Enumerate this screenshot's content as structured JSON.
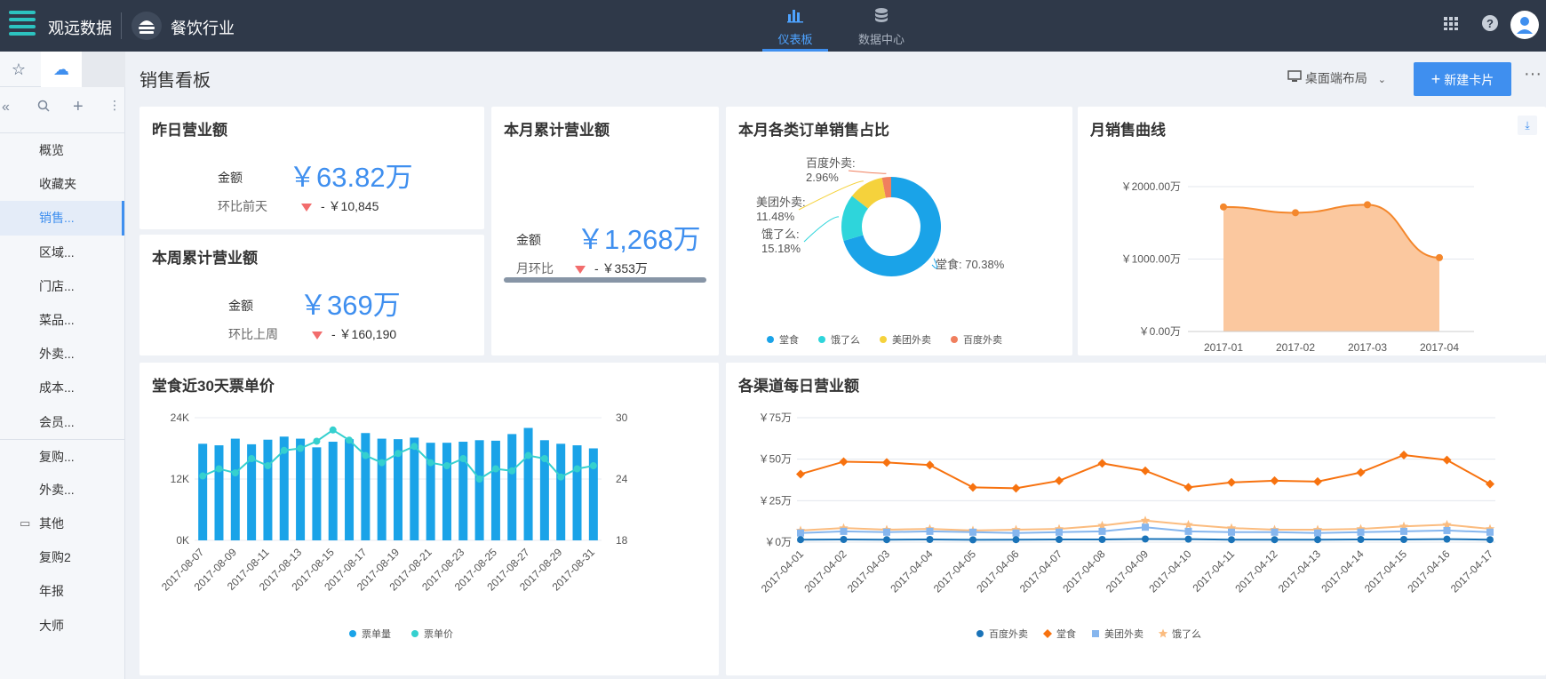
{
  "topbar": {
    "brand": "观远数据",
    "project": "餐饮行业",
    "nav": [
      {
        "label": "仪表板",
        "icon": "bar-chart-icon",
        "active": true
      },
      {
        "label": "数据中心",
        "icon": "database-icon",
        "active": false
      }
    ],
    "right_icons": [
      "apps-grid-icon",
      "help-icon",
      "user-avatar-icon"
    ]
  },
  "sidebar": {
    "tabs": [
      "star-icon",
      "cloud-icon"
    ],
    "tools": [
      "collapse-icon",
      "search-icon",
      "add-icon",
      "more-vertical-icon"
    ],
    "items": [
      {
        "label": "概览"
      },
      {
        "label": "收藏夹"
      },
      {
        "label": "销售..."
      },
      {
        "label": "区域..."
      },
      {
        "label": "门店..."
      },
      {
        "label": "菜品..."
      },
      {
        "label": "外卖..."
      },
      {
        "label": "成本..."
      },
      {
        "label": "会员..."
      },
      {
        "label": "复购..."
      },
      {
        "label": "外卖..."
      },
      {
        "label": "其他"
      },
      {
        "label": "复购2"
      },
      {
        "label": "年报"
      },
      {
        "label": "大师"
      }
    ]
  },
  "page": {
    "title": "销售看板",
    "layout_label": "桌面端布局",
    "new_card_label": "新建卡片",
    "more": "···"
  },
  "cards": {
    "yesterday": {
      "title": "昨日营业额",
      "amount_label": "金额",
      "amount": "￥63.82万",
      "compare_label": "环比前天",
      "compare_value": "- ￥10,845"
    },
    "month": {
      "title": "本月累计营业额",
      "amount_label": "金额",
      "amount": "￥1,268万",
      "compare_label": "月环比",
      "compare_value": "- ￥353万"
    },
    "week": {
      "title": "本周累计营业额",
      "amount_label": "金额",
      "amount": "￥369万",
      "compare_label": "环比上周",
      "compare_value": "- ￥160,190"
    },
    "pie_title": "本月各类订单销售占比",
    "monthly_title": "月销售曲线",
    "ticket_title": "堂食近30天票单价",
    "channel_title": "各渠道每日营业额"
  },
  "colors": {
    "accent": "#3f8fef",
    "topbar": "#2f3949",
    "down": "#f26c6c"
  },
  "chart_data": [
    {
      "type": "pie",
      "variant": "donut",
      "title": "本月各类订单销售占比",
      "slices": [
        {
          "name": "堂食",
          "value": 70.38,
          "label": "堂食: 70.38%",
          "color": "#1aa3e8"
        },
        {
          "name": "饿了么",
          "value": 15.18,
          "label": "饿了么: 15.18%",
          "color": "#2ed5db"
        },
        {
          "name": "美团外卖",
          "value": 11.48,
          "label": "美团外卖: 11.48%",
          "color": "#f5d23c"
        },
        {
          "name": "百度外卖",
          "value": 2.96,
          "label": "百度外卖: 2.96%",
          "color": "#f07f5e"
        }
      ],
      "legend": "bottom"
    },
    {
      "type": "area",
      "title": "月销售曲线",
      "categories": [
        "2017-01",
        "2017-02",
        "2017-03",
        "2017-04"
      ],
      "values": [
        1720,
        1640,
        1750,
        1020
      ],
      "y_ticks": [
        "￥0.00万",
        "￥1000.00万",
        "￥2000.00万"
      ],
      "ylim": [
        0,
        2000
      ],
      "color": "#f4872c",
      "fill": "#fbc89f",
      "grid": true
    },
    {
      "type": "bar",
      "title": "堂食近30天票单价",
      "categories": [
        "2017-08-07",
        "2017-08-08",
        "2017-08-09",
        "2017-08-10",
        "2017-08-11",
        "2017-08-12",
        "2017-08-13",
        "2017-08-14",
        "2017-08-15",
        "2017-08-16",
        "2017-08-17",
        "2017-08-18",
        "2017-08-19",
        "2017-08-20",
        "2017-08-21",
        "2017-08-22",
        "2017-08-23",
        "2017-08-24",
        "2017-08-25",
        "2017-08-26",
        "2017-08-27",
        "2017-08-28",
        "2017-08-29",
        "2017-08-30",
        "2017-08-31"
      ],
      "tick_every": 2,
      "series": [
        {
          "name": "票单量",
          "kind": "bar",
          "axis": "left",
          "color": "#1aa3e8",
          "values": [
            18900,
            18600,
            19900,
            18800,
            19700,
            20300,
            19900,
            18200,
            19300,
            19800,
            21000,
            19900,
            19800,
            20100,
            19100,
            19100,
            19300,
            19600,
            19500,
            20800,
            22000,
            19600,
            18900,
            18600,
            18000
          ]
        },
        {
          "name": "票单价",
          "kind": "line",
          "axis": "right",
          "color": "#35d0cf",
          "values": [
            24.3,
            25.0,
            24.6,
            26.0,
            25.3,
            26.8,
            27.0,
            27.7,
            28.8,
            27.8,
            26.3,
            25.6,
            26.5,
            27.2,
            25.6,
            25.3,
            26.0,
            24.0,
            25.0,
            24.8,
            26.3,
            26.0,
            24.2,
            25.0,
            25.3
          ]
        }
      ],
      "y_left_ticks": [
        "0K",
        "12K",
        "24K"
      ],
      "y_left_lim": [
        0,
        24000
      ],
      "y_right_ticks": [
        "18",
        "24",
        "30"
      ],
      "y_right_lim": [
        18,
        30
      ],
      "legend": "bottom"
    },
    {
      "type": "line",
      "title": "各渠道每日营业额",
      "categories": [
        "2017-04-01",
        "2017-04-02",
        "2017-04-03",
        "2017-04-04",
        "2017-04-05",
        "2017-04-06",
        "2017-04-07",
        "2017-04-08",
        "2017-04-09",
        "2017-04-10",
        "2017-04-11",
        "2017-04-12",
        "2017-04-13",
        "2017-04-14",
        "2017-04-15",
        "2017-04-16",
        "2017-04-17"
      ],
      "series": [
        {
          "name": "百度外卖",
          "color": "#1a73b8",
          "marker": "circle",
          "values": [
            1.5,
            1.6,
            1.5,
            1.6,
            1.4,
            1.5,
            1.6,
            1.6,
            1.9,
            1.8,
            1.5,
            1.5,
            1.5,
            1.6,
            1.6,
            1.8,
            1.5
          ]
        },
        {
          "name": "堂食",
          "color": "#f7720f",
          "marker": "diamond",
          "values": [
            41,
            48.5,
            48,
            46.5,
            33,
            32.5,
            37,
            47.5,
            43,
            33,
            36,
            37,
            36.5,
            42,
            52.5,
            49.5,
            35
          ]
        },
        {
          "name": "美团外卖",
          "color": "#86b6ee",
          "marker": "square",
          "values": [
            5.5,
            6.5,
            6,
            6.5,
            6,
            5.5,
            6,
            6.5,
            9,
            6.5,
            6,
            6,
            5.5,
            6,
            6.5,
            7,
            6
          ]
        },
        {
          "name": "饿了么",
          "color": "#fbbc7f",
          "marker": "star",
          "values": [
            7,
            8.5,
            7.5,
            8,
            7,
            7.5,
            8,
            10,
            13,
            10.5,
            8.5,
            7.5,
            7.5,
            8,
            9.5,
            10.5,
            8
          ]
        }
      ],
      "y_ticks": [
        "￥0万",
        "￥25万",
        "￥50万",
        "￥75万"
      ],
      "ylim": [
        0,
        75
      ],
      "legend": "bottom",
      "grid": true
    }
  ]
}
